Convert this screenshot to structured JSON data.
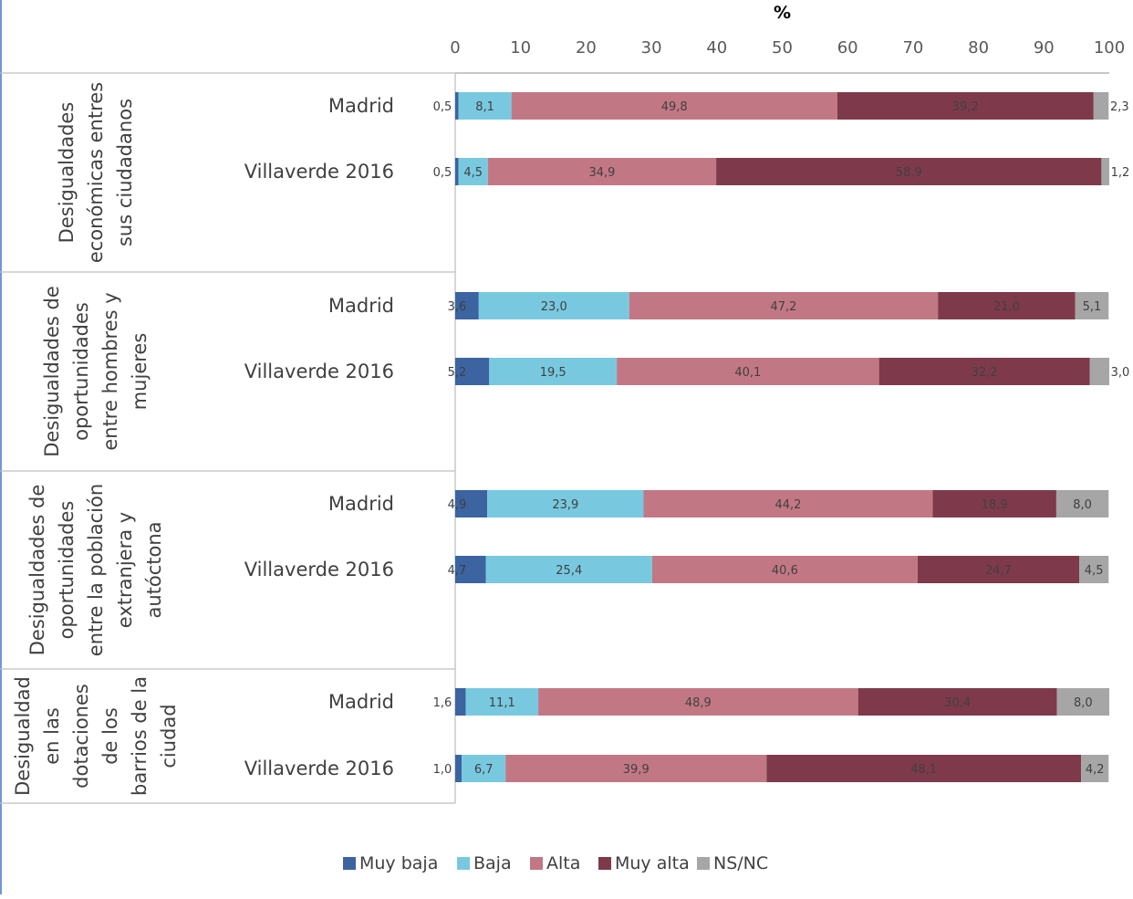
{
  "chart_data": {
    "type": "bar",
    "orientation": "horizontal",
    "stacked": true,
    "title": "",
    "xlabel": "%",
    "ylabel": "",
    "xlim": [
      0,
      100
    ],
    "x_ticks": [
      "0",
      "10",
      "20",
      "30",
      "40",
      "50",
      "60",
      "70",
      "80",
      "90",
      "100"
    ],
    "legend_position": "bottom",
    "series_names": [
      "Muy baja",
      "Baja",
      "Alta",
      "Muy alta",
      "NS/NC"
    ],
    "colors": [
      "#3B64A1",
      "#78C9E0",
      "#C27884",
      "#7E3A4B",
      "#A6A6A6"
    ],
    "groups": [
      {
        "label": "Desigualdades económicas entres sus ciudadanos",
        "label_lines": [
          "Desigualdades",
          "económicas entres",
          "sus ciudadanos"
        ],
        "rows": [
          {
            "label": "Madrid",
            "values": [
              0.5,
              8.1,
              49.8,
              39.2,
              2.3
            ],
            "value_labels": [
              "0,5",
              "8,1",
              "49,8",
              "39,2",
              "2,3"
            ]
          },
          {
            "label": "Villaverde 2016",
            "values": [
              0.5,
              4.5,
              34.9,
              58.9,
              1.2
            ],
            "value_labels": [
              "0,5",
              "4,5",
              "34,9",
              "58,9",
              "1,2"
            ]
          }
        ]
      },
      {
        "label": "Desigualdades de oportunidades entre hombres y mujeres",
        "label_lines": [
          "Desigualdades de",
          "oportunidades",
          "entre hombres y",
          "mujeres"
        ],
        "rows": [
          {
            "label": "Madrid",
            "values": [
              3.6,
              23.0,
              47.2,
              21.0,
              5.1
            ],
            "value_labels": [
              "3,6",
              "23,0",
              "47,2",
              "21,0",
              "5,1"
            ]
          },
          {
            "label": "Villaverde 2016",
            "values": [
              5.2,
              19.5,
              40.1,
              32.2,
              3.0
            ],
            "value_labels": [
              "5,2",
              "19,5",
              "40,1",
              "32,2",
              "3,0"
            ]
          }
        ]
      },
      {
        "label": "Desigualdades de oportunidades entre la población extranjera y autóctona",
        "label_lines": [
          "Desigualdades de",
          "oportunidades",
          "entre la población",
          "extranjera y",
          "autóctona"
        ],
        "rows": [
          {
            "label": "Madrid",
            "values": [
              4.9,
              23.9,
              44.2,
              18.9,
              8.0
            ],
            "value_labels": [
              "4,9",
              "23,9",
              "44,2",
              "18,9",
              "8,0"
            ]
          },
          {
            "label": "Villaverde 2016",
            "values": [
              4.7,
              25.4,
              40.6,
              24.7,
              4.5
            ],
            "value_labels": [
              "4,7",
              "25,4",
              "40,6",
              "24,7",
              "4,5"
            ]
          }
        ]
      },
      {
        "label": "Desigualdad en las dotaciones de los barrios de la ciudad",
        "label_lines": [
          "Desigualdad",
          "en las",
          "dotaciones",
          "de los",
          "barrios de la",
          "ciudad"
        ],
        "rows": [
          {
            "label": "Madrid",
            "values": [
              1.6,
              11.1,
              48.9,
              30.4,
              8.0
            ],
            "value_labels": [
              "1,6",
              "11,1",
              "48,9",
              "30,4",
              "8,0"
            ]
          },
          {
            "label": "Villaverde 2016",
            "values": [
              1.0,
              6.7,
              39.9,
              48.1,
              4.2
            ],
            "value_labels": [
              "1,0",
              "6,7",
              "39,9",
              "48,1",
              "4,2"
            ]
          }
        ]
      }
    ]
  }
}
